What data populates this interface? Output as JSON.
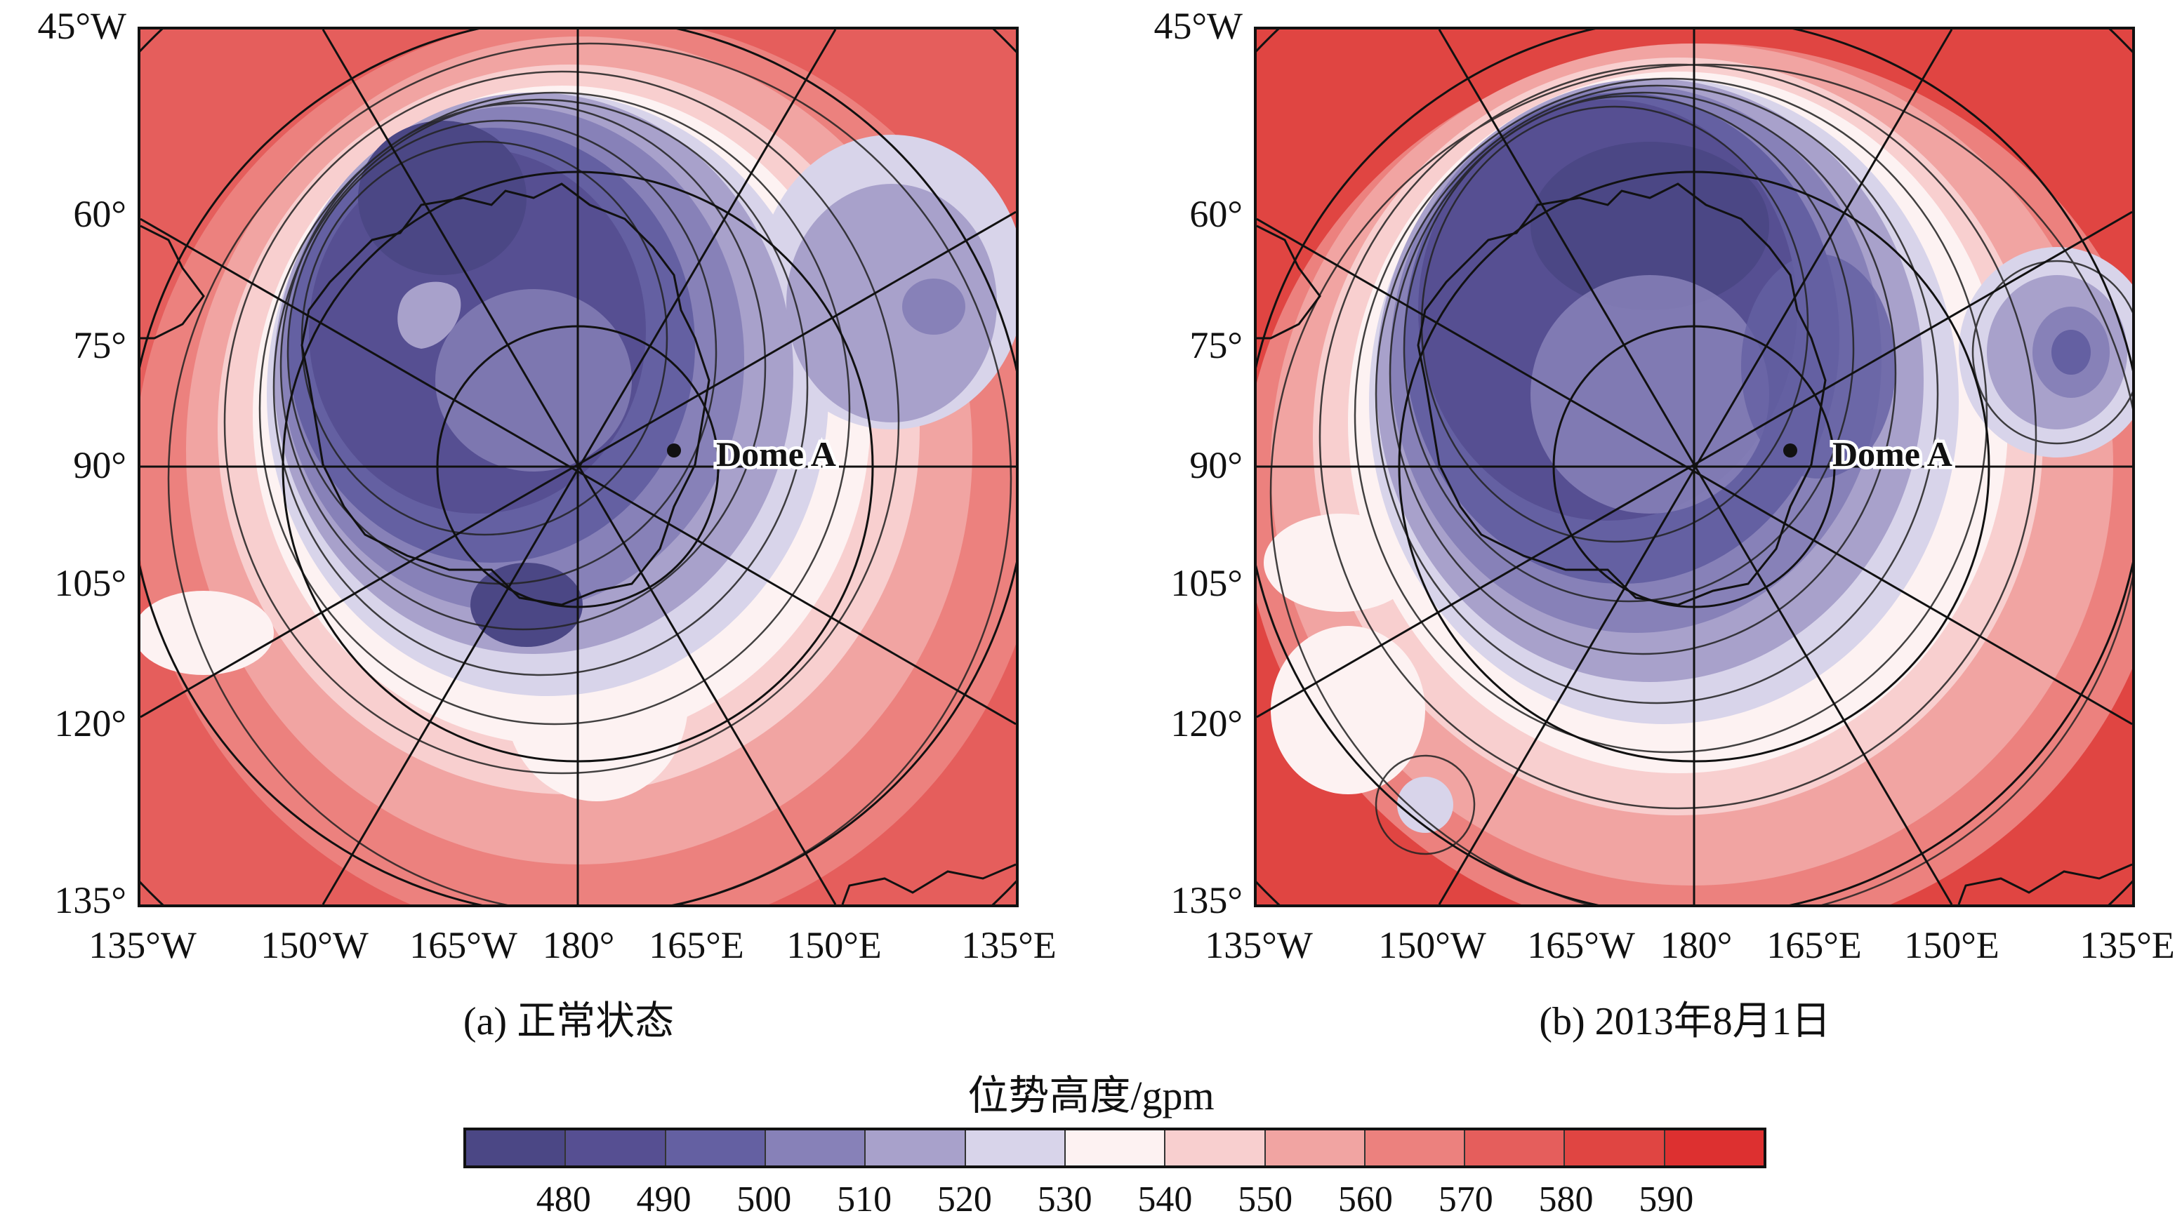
{
  "panels": [
    {
      "caption": "(a) 正常状态",
      "lat_labels": [
        "45°W",
        "60°",
        "75°",
        "90°",
        "105°",
        "120°",
        "135°"
      ],
      "lon_labels": [
        "135°W",
        "150°W",
        "165°W",
        "180°",
        "165°E",
        "150°E",
        "135°E"
      ],
      "marker_label": "Dome A"
    },
    {
      "caption": "(b) 2013年8月1日",
      "lat_labels": [
        "45°W",
        "60°",
        "75°",
        "90°",
        "105°",
        "120°",
        "135°"
      ],
      "lon_labels": [
        "135°W",
        "150°W",
        "165°W",
        "180°",
        "165°E",
        "150°E",
        "135°E"
      ],
      "marker_label": "Dome A"
    }
  ],
  "colorbar": {
    "title": "位势高度/gpm",
    "ticks": [
      "480",
      "490",
      "500",
      "510",
      "520",
      "530",
      "540",
      "550",
      "560",
      "570",
      "580",
      "590"
    ],
    "colors": [
      "#4b4785",
      "#564f92",
      "#6460a2",
      "#8781b8",
      "#a8a1cb",
      "#d8d4ea",
      "#fdf2f2",
      "#f8cfcf",
      "#f1a4a2",
      "#ec817e",
      "#e55e5c",
      "#e04542",
      "#dd3030"
    ]
  }
}
